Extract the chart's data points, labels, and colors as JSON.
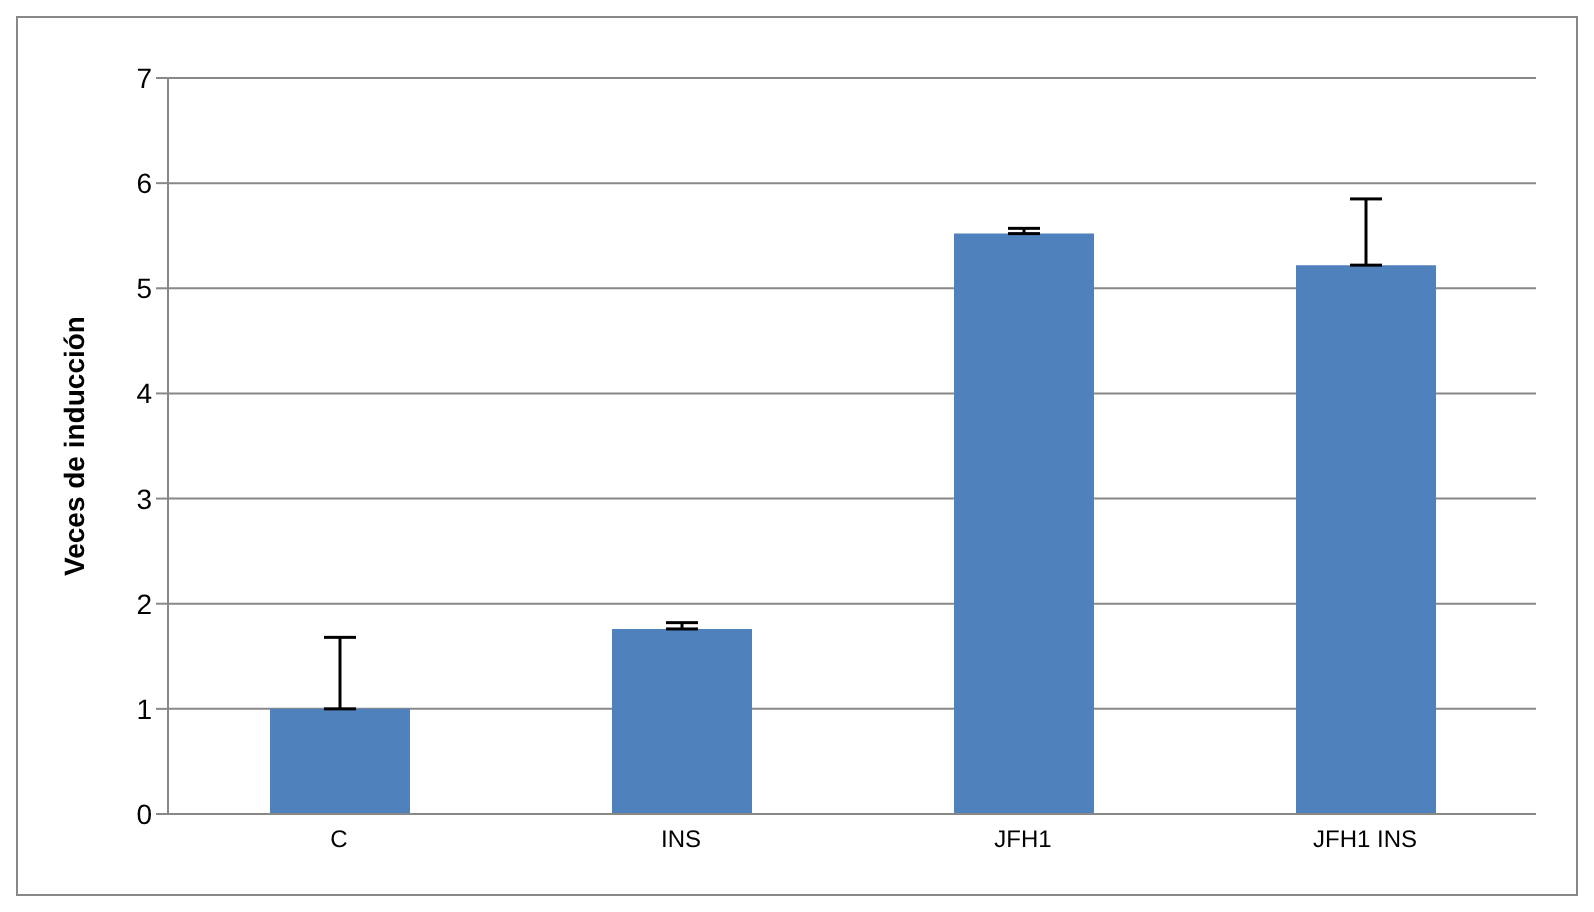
{
  "chart_data": {
    "type": "bar",
    "ylabel": "Veces de inducción",
    "categories": [
      "C",
      "INS",
      "JFH1",
      "JFH1 INS"
    ],
    "values": [
      1.0,
      1.76,
      5.52,
      5.22
    ],
    "errors": [
      [
        1.0,
        1.68
      ],
      [
        1.76,
        1.82
      ],
      [
        5.52,
        5.57
      ],
      [
        5.22,
        5.85
      ]
    ],
    "color": "#4f81bd",
    "ylim": [
      0,
      7
    ],
    "yticks": [
      0,
      1,
      2,
      3,
      4,
      5,
      6,
      7
    ],
    "grid": "y",
    "legend": false
  }
}
